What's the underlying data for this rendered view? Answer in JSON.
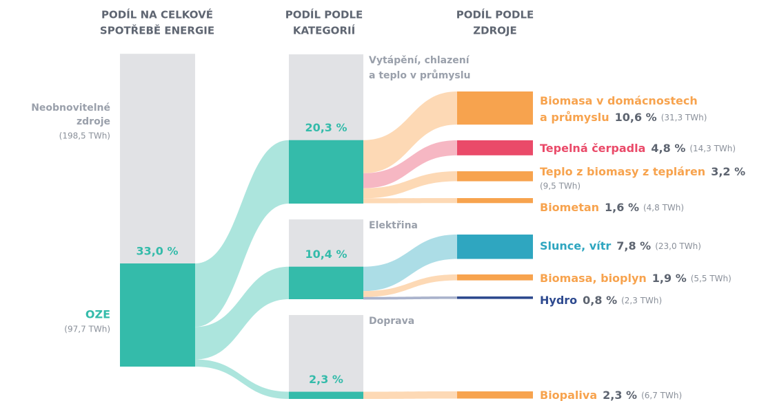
{
  "chart_data": {
    "type": "sankey",
    "headers": [
      [
        "PODÍL NA CELKOVÉ",
        "SPOTŘEBĚ ENERGIE"
      ],
      [
        "PODÍL PODLE",
        "KATEGORIÍ"
      ],
      [
        "PODÍL PODLE",
        "ZDROJE"
      ]
    ],
    "nonrenewable": {
      "name": [
        "Neobnovitelné",
        "zdroje"
      ],
      "twh": 198.5,
      "twh_label": "(198,5 TWh)",
      "color": "#e1e2e5"
    },
    "renewable": {
      "name": "OZE",
      "value": 33.0,
      "value_label": "33,0 %",
      "twh": 97.7,
      "twh_label": "(97,7 TWh)",
      "color": "#34bbaa",
      "link_color": "#ace5dd"
    },
    "categories": [
      {
        "name": [
          "Vytápění, chlazení",
          "a teplo v průmyslu"
        ],
        "value": 20.3,
        "value_label": "20,3 %",
        "sources": [
          {
            "name": [
              "Biomasa v domácnostech",
              "a průmyslu"
            ],
            "value": 10.6,
            "value_label": "10,6 %",
            "twh": 31.3,
            "twh_label": "(31,3 TWh)",
            "color": "#f7a34e",
            "link_color": "#fdd9b5"
          },
          {
            "name": [
              "Tepelná čerpadla"
            ],
            "value": 4.8,
            "value_label": "4,8 %",
            "twh": 14.3,
            "twh_label": "(14,3 TWh)",
            "color": "#ea4a69",
            "link_color": "#f6b7c3"
          },
          {
            "name": [
              "Teplo z biomasy z tepláren"
            ],
            "value": 3.2,
            "value_label": "3,2 %",
            "twh": 9.5,
            "twh_label": "(9,5 TWh)",
            "color": "#f7a34e",
            "link_color": "#fdd9b5"
          },
          {
            "name": [
              "Biometan"
            ],
            "value": 1.6,
            "value_label": "1,6 %",
            "twh": 4.8,
            "twh_label": "(4,8 TWh)",
            "color": "#f7a34e",
            "link_color": "#fdd9b5"
          }
        ]
      },
      {
        "name": [
          "Elektřina"
        ],
        "value": 10.4,
        "value_label": "10,4 %",
        "sources": [
          {
            "name": [
              "Slunce, vítr"
            ],
            "value": 7.8,
            "value_label": "7,8 %",
            "twh": 23.0,
            "twh_label": "(23,0 TWh)",
            "color": "#2fa6c0",
            "link_color": "#acdde6"
          },
          {
            "name": [
              "Biomasa, bioplyn"
            ],
            "value": 1.9,
            "value_label": "1,9 %",
            "twh": 5.5,
            "twh_label": "(5,5 TWh)",
            "color": "#f7a34e",
            "link_color": "#fdd9b5"
          },
          {
            "name": [
              "Hydro"
            ],
            "value": 0.8,
            "value_label": "0,8 %",
            "twh": 2.3,
            "twh_label": "(2,3 TWh)",
            "color": "#2e4a8f",
            "link_color": "#aab3cc"
          }
        ]
      },
      {
        "name": [
          "Doprava"
        ],
        "value": 2.3,
        "value_label": "2,3 %",
        "sources": [
          {
            "name": [
              "Biopaliva"
            ],
            "value": 2.3,
            "value_label": "2,3 %",
            "twh": 6.7,
            "twh_label": "(6,7 TWh)",
            "color": "#f7a34e",
            "link_color": "#fdd9b5"
          }
        ]
      }
    ]
  }
}
